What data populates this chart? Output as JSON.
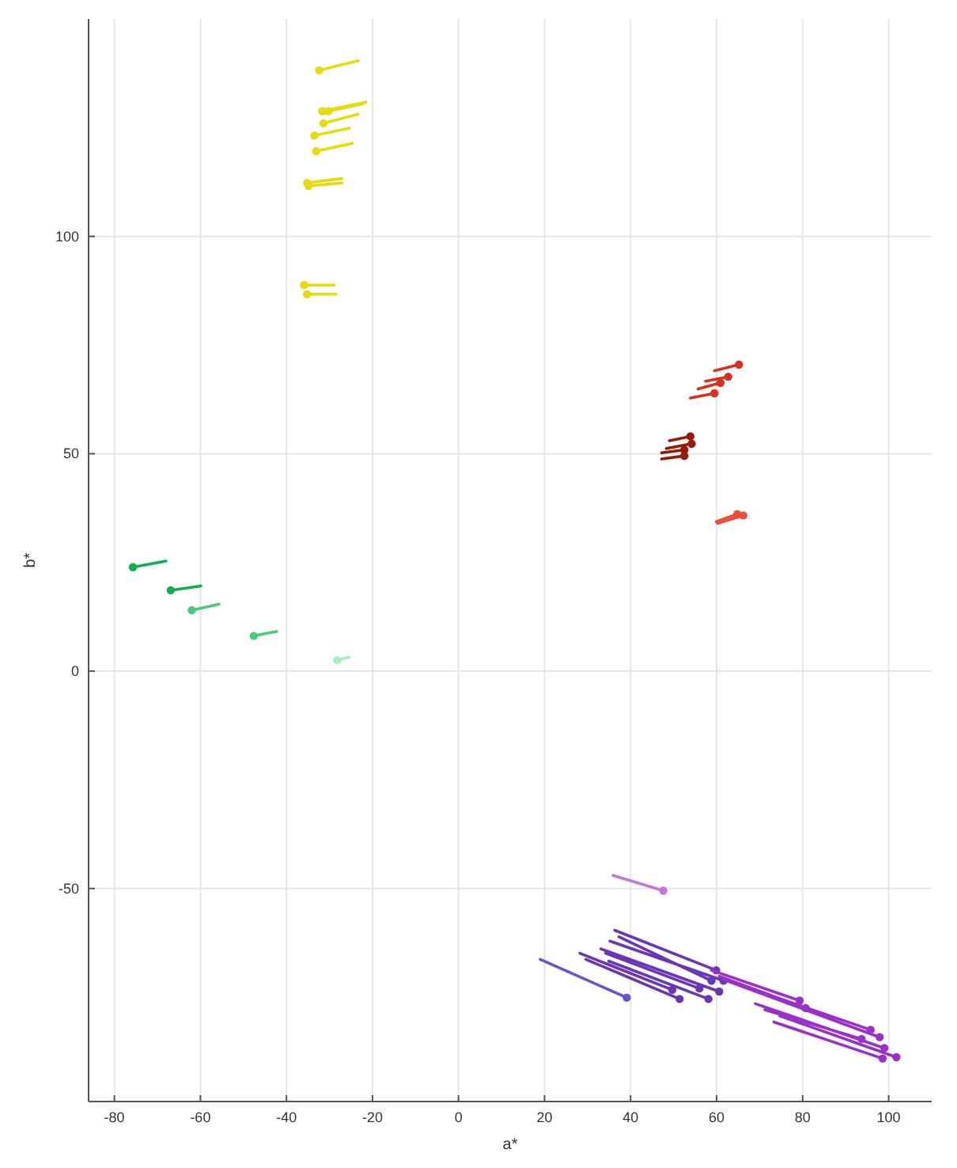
{
  "chart_data": {
    "type": "line",
    "xlabel": "a*",
    "ylabel": "b*",
    "xlim": [
      -86,
      110
    ],
    "ylim": [
      -99,
      150
    ],
    "xticks": [
      -80,
      -60,
      -40,
      -20,
      0,
      20,
      40,
      60,
      80,
      100
    ],
    "yticks": [
      -50,
      0,
      50,
      100
    ],
    "grid": true,
    "series": [
      {
        "type": "line",
        "color": "#e4dc10",
        "x": [
          -23.3,
          -32.4,
          null,
          -21.5,
          -31.7,
          null,
          -22.2,
          -30.3,
          null,
          -23.3,
          -31.4,
          null,
          -25.4,
          -33.5,
          null,
          -24.7,
          -33.1,
          null,
          -27.1,
          -35.2,
          null,
          -27.1,
          -34.9,
          null,
          -28.9,
          -35.9,
          null,
          -28.5,
          -35.2
        ],
        "values": [
          140.4,
          138.2,
          null,
          130.9,
          128.8,
          null,
          130.5,
          128.8,
          null,
          128.1,
          126.0,
          null,
          124.9,
          123.2,
          null,
          121.4,
          119.6,
          null,
          113.3,
          112.3,
          null,
          112.3,
          111.6,
          null,
          88.8,
          88.8,
          null,
          86.7,
          86.7
        ]
      },
      {
        "type": "scatter",
        "color": "#e4dc10",
        "x": [
          -32.4,
          -31.7,
          -30.3,
          -31.4,
          -33.5,
          -33.1,
          -35.2,
          -34.9,
          -35.9,
          -35.2
        ],
        "values": [
          138.2,
          128.8,
          128.8,
          126.0,
          123.2,
          119.6,
          112.3,
          111.6,
          88.8,
          86.7
        ]
      },
      {
        "type": "line",
        "color": "#d8301a",
        "x": [
          59.5,
          65.2,
          null,
          57.4,
          62.7,
          null,
          55.7,
          60.9,
          null,
          53.9,
          59.5
        ],
        "values": [
          69.1,
          70.5,
          null,
          66.7,
          67.7,
          null,
          64.9,
          66.3,
          null,
          62.8,
          63.9
        ]
      },
      {
        "type": "scatter",
        "color": "#d8301a",
        "x": [
          65.2,
          62.7,
          60.9,
          59.5
        ],
        "values": [
          70.5,
          67.7,
          66.3,
          63.9
        ]
      },
      {
        "type": "line",
        "color": "#981a08",
        "x": [
          49.0,
          53.9,
          null,
          48.3,
          54.2,
          null,
          47.2,
          52.5,
          null,
          47.2,
          52.5
        ],
        "values": [
          53.0,
          54.0,
          null,
          51.2,
          52.3,
          null,
          50.2,
          50.9,
          null,
          48.8,
          49.5
        ]
      },
      {
        "type": "scatter",
        "color": "#981a08",
        "x": [
          53.9,
          54.2,
          52.5,
          52.5
        ],
        "values": [
          54.0,
          52.3,
          50.9,
          49.5
        ]
      },
      {
        "type": "line",
        "color": "#f04c3c",
        "x": [
          60.2,
          66.2,
          null,
          59.9,
          64.8
        ],
        "values": [
          34.0,
          35.8,
          null,
          34.4,
          36.1
        ]
      },
      {
        "type": "scatter",
        "color": "#f04c3c",
        "x": [
          66.2,
          64.8
        ],
        "values": [
          35.8,
          36.1
        ]
      },
      {
        "type": "line",
        "color": "#10b050",
        "x": [
          -68.0,
          -75.7,
          null,
          -59.9,
          -66.9
        ],
        "values": [
          25.3,
          23.9,
          null,
          19.6,
          18.6
        ]
      },
      {
        "type": "scatter",
        "color": "#10b050",
        "x": [
          -75.7,
          -66.9
        ],
        "values": [
          23.9,
          18.6
        ]
      },
      {
        "type": "line",
        "color": "#48cc78",
        "x": [
          -55.7,
          -62.0,
          null,
          -42.3,
          -47.6
        ],
        "values": [
          15.4,
          14.0,
          null,
          9.1,
          8.1
        ]
      },
      {
        "type": "scatter",
        "color": "#48cc78",
        "x": [
          -62.0,
          -47.6
        ],
        "values": [
          14.0,
          8.1
        ]
      },
      {
        "type": "line",
        "color": "#a8eec0",
        "x": [
          -25.4,
          -28.2
        ],
        "values": [
          3.2,
          2.5
        ]
      },
      {
        "type": "scatter",
        "color": "#a8eec0",
        "x": [
          -28.2
        ],
        "values": [
          2.5
        ]
      },
      {
        "type": "line",
        "color": "#c478dc",
        "x": [
          35.9,
          47.6
        ],
        "values": [
          -47.0,
          -50.5
        ]
      },
      {
        "type": "scatter",
        "color": "#c478dc",
        "x": [
          47.6
        ],
        "values": [
          -50.5
        ]
      },
      {
        "type": "line",
        "color": "#6655d0",
        "x": [
          19.0,
          39.1
        ],
        "values": [
          -66.3,
          -75.1
        ]
      },
      {
        "type": "scatter",
        "color": "#6655d0",
        "x": [
          39.1
        ],
        "values": [
          -75.1
        ]
      },
      {
        "type": "line",
        "color": "#6a36b8",
        "x": [
          36.3,
          59.9,
          null,
          37.3,
          58.8,
          null,
          35.2,
          61.6,
          null,
          33.1,
          60.6,
          null,
          34.2,
          56.0,
          null,
          28.2,
          49.7,
          null,
          29.6,
          51.4,
          null,
          34.9,
          58.1
        ],
        "values": [
          -59.6,
          -68.8,
          null,
          -61.1,
          -71.2,
          null,
          -62.1,
          -71.2,
          null,
          -63.9,
          -73.7,
          null,
          -64.9,
          -73.0,
          null,
          -64.9,
          -73.3,
          null,
          -66.3,
          -75.4,
          null,
          -66.7,
          -75.4
        ]
      },
      {
        "type": "scatter",
        "color": "#6a36b8",
        "x": [
          59.9,
          58.8,
          61.6,
          60.6,
          56.0,
          49.7,
          51.4,
          58.1
        ],
        "values": [
          -68.8,
          -71.2,
          -71.2,
          -73.7,
          -73.0,
          -73.3,
          -75.4,
          -75.4
        ]
      },
      {
        "type": "line",
        "color": "#9a30c8",
        "x": [
          61.6,
          95.8,
          null,
          62.3,
          97.9,
          null,
          58.8,
          79.3,
          null,
          60.6,
          80.7,
          null,
          69.0,
          99.0,
          null,
          74.7,
          101.8,
          null,
          73.3,
          98.6,
          null,
          71.2,
          93.7
        ],
        "values": [
          -70.9,
          -82.5,
          null,
          -71.2,
          -84.2,
          null,
          -68.8,
          -75.8,
          null,
          -70.2,
          -77.5,
          null,
          -76.5,
          -86.7,
          null,
          -79.3,
          -88.8,
          null,
          -80.7,
          -89.1,
          null,
          -77.9,
          -84.6
        ]
      },
      {
        "type": "scatter",
        "color": "#9a30c8",
        "x": [
          95.8,
          97.9,
          79.3,
          80.7,
          99.0,
          101.8,
          98.6,
          93.7
        ],
        "values": [
          -82.5,
          -84.2,
          -75.8,
          -77.5,
          -86.7,
          -88.8,
          -89.1,
          -84.6
        ]
      }
    ]
  }
}
